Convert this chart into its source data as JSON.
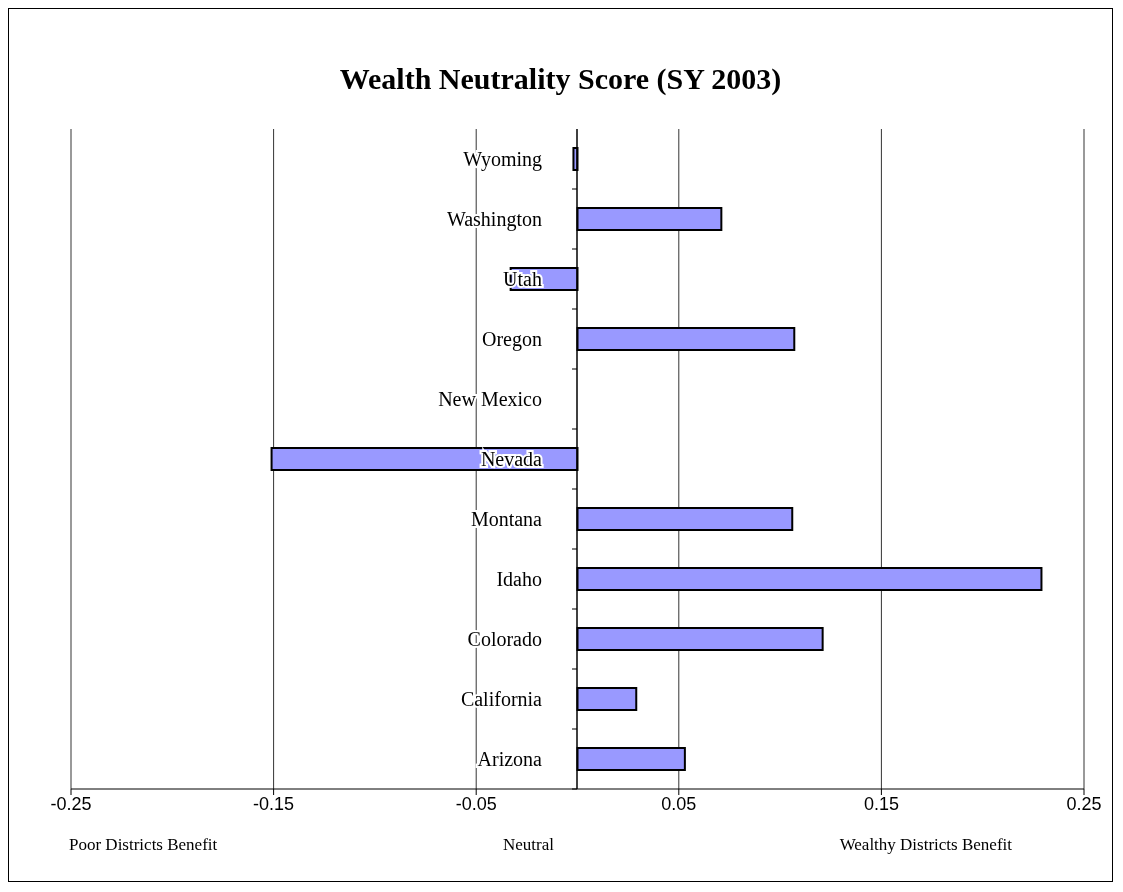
{
  "chart_data": {
    "type": "bar",
    "orientation": "horizontal",
    "title": "Wealth Neutrality Score (SY 2003)",
    "categories": [
      "Wyoming",
      "Washington",
      "Utah",
      "Oregon",
      "New Mexico",
      "Nevada",
      "Montana",
      "Idaho",
      "Colorado",
      "California",
      "Arizona"
    ],
    "values": [
      -0.002,
      0.071,
      -0.033,
      0.107,
      null,
      -0.151,
      0.106,
      0.229,
      0.121,
      0.029,
      0.053
    ],
    "color": "#9999ff",
    "xlim": [
      -0.25,
      0.25
    ],
    "xticks": [
      -0.25,
      -0.15,
      -0.05,
      0.05,
      0.15,
      0.25
    ],
    "grid": "x",
    "annotations": [
      "Poor Districts Benefit",
      "Neutral",
      "Wealthy Districts Benefit"
    ]
  }
}
